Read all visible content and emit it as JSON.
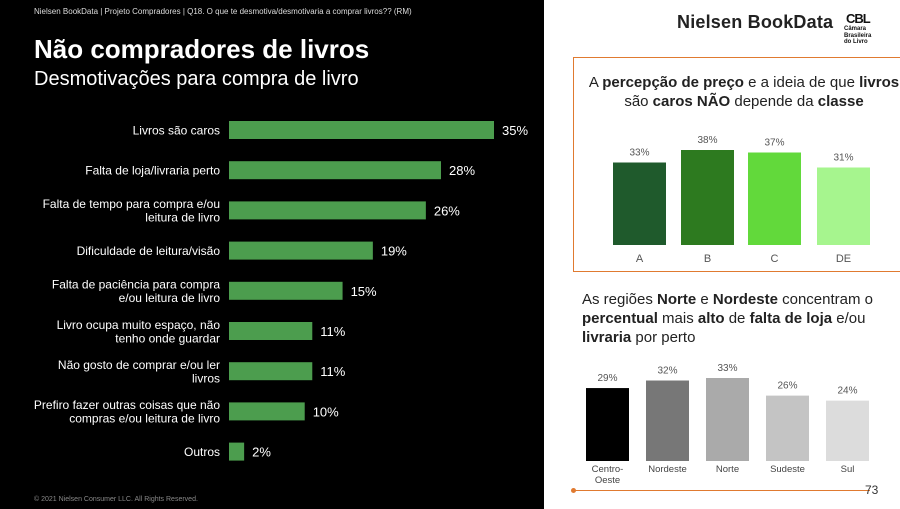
{
  "header": {
    "source_note": "Nielsen BookData | Projeto Compradores | Q18. O que te desmotiva/desmotivaria a comprar livros?? (RM)",
    "title": "Não compradores de livros",
    "subtitle": "Desmotivações para compra de livro",
    "copyright": "© 2021 Nielsen Consumer LLC. All Rights Reserved."
  },
  "branding": {
    "logo_text": "Nielsen BookData",
    "partner_mark": "CBL",
    "partner_lines": [
      "Câmara",
      "Brasileira",
      "do Livro"
    ]
  },
  "headline1": {
    "p1": "A ",
    "b1": "percepção de preço",
    "p2": " e a ideia de que ",
    "b2": "livros",
    "p3": " são ",
    "b3": "caros NÃO",
    "p4": " depende da ",
    "b4": "classe"
  },
  "headline2": {
    "p1": "As regiões ",
    "b1": "Norte",
    "p2": " e ",
    "b2": "Nordeste",
    "p3": " concentram o ",
    "b3": "percentual",
    "p4": " mais ",
    "b4": "alto",
    "p5": " de ",
    "b5": "falta de loja",
    "p6": " e/ou ",
    "b6": "livraria",
    "p7": " por perto"
  },
  "page_number": "73",
  "colors": {
    "left_bar": "#4c9d4e",
    "class_bars": [
      "#1f5a2c",
      "#2d7a1f",
      "#62d93b",
      "#a6f58e"
    ],
    "region_bars": [
      "#000000",
      "#777777",
      "#aaaaaa",
      "#c4c4c4",
      "#dcdcdc"
    ],
    "accent": "#e07a30"
  },
  "chart_data": [
    {
      "type": "bar",
      "orientation": "horizontal",
      "categories": [
        [
          "Livros são caros"
        ],
        [
          "Falta de loja/livraria perto"
        ],
        [
          "Falta de tempo para compra e/ou",
          "leitura de livro"
        ],
        [
          "Dificuldade de leitura/visão"
        ],
        [
          "Falta de paciência para compra",
          "e/ou leitura de livro"
        ],
        [
          "Livro ocupa muito espaço, não",
          "tenho onde guardar"
        ],
        [
          "Não gosto de comprar e/ou ler",
          "livros"
        ],
        [
          "Prefiro fazer outras coisas que não",
          "compras e/ou leitura de livro"
        ],
        [
          "Outros"
        ]
      ],
      "values": [
        35,
        28,
        26,
        19,
        15,
        11,
        11,
        10,
        2
      ],
      "value_labels": [
        "35%",
        "28%",
        "26%",
        "19%",
        "15%",
        "11%",
        "11%",
        "10%",
        "2%"
      ],
      "unit": "%"
    },
    {
      "type": "bar",
      "orientation": "vertical",
      "categories": [
        "A",
        "B",
        "C",
        "DE"
      ],
      "values": [
        33,
        38,
        37,
        31
      ],
      "value_labels": [
        "33%",
        "38%",
        "37%",
        "31%"
      ],
      "unit": "%"
    },
    {
      "type": "bar",
      "orientation": "vertical",
      "categories": [
        [
          "Centro-",
          "Oeste"
        ],
        [
          "Nordeste"
        ],
        [
          "Norte"
        ],
        [
          "Sudeste"
        ],
        [
          "Sul"
        ]
      ],
      "values": [
        29,
        32,
        33,
        26,
        24
      ],
      "value_labels": [
        "29%",
        "32%",
        "33%",
        "26%",
        "24%"
      ],
      "unit": "%"
    }
  ]
}
